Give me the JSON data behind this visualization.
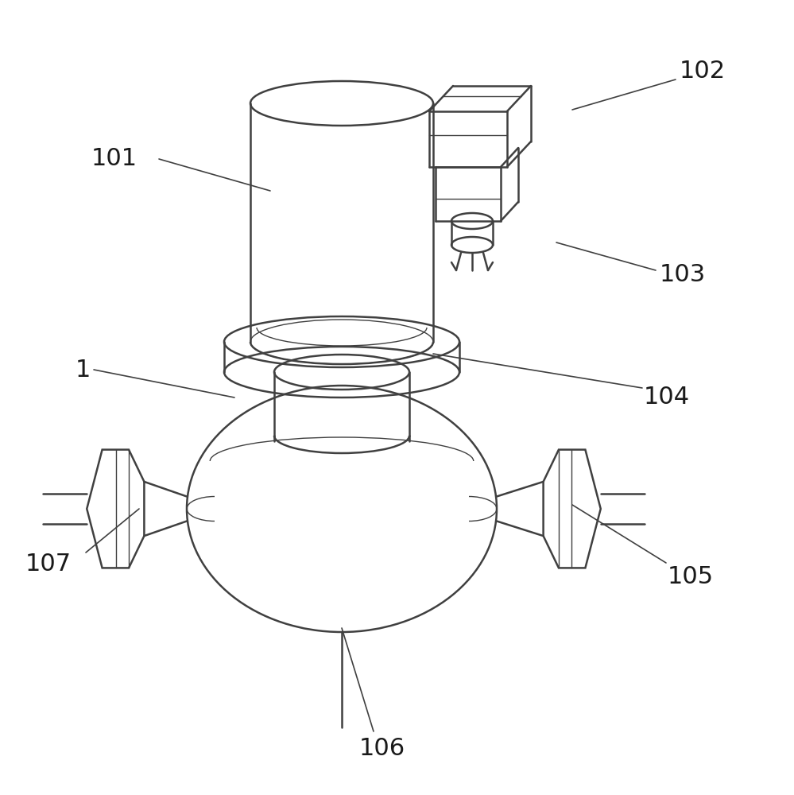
{
  "bg_color": "#ffffff",
  "line_color": "#404040",
  "line_width": 1.8,
  "label_color": "#1a1a1a",
  "label_fontsize": 22,
  "thin_lw": 1.0
}
